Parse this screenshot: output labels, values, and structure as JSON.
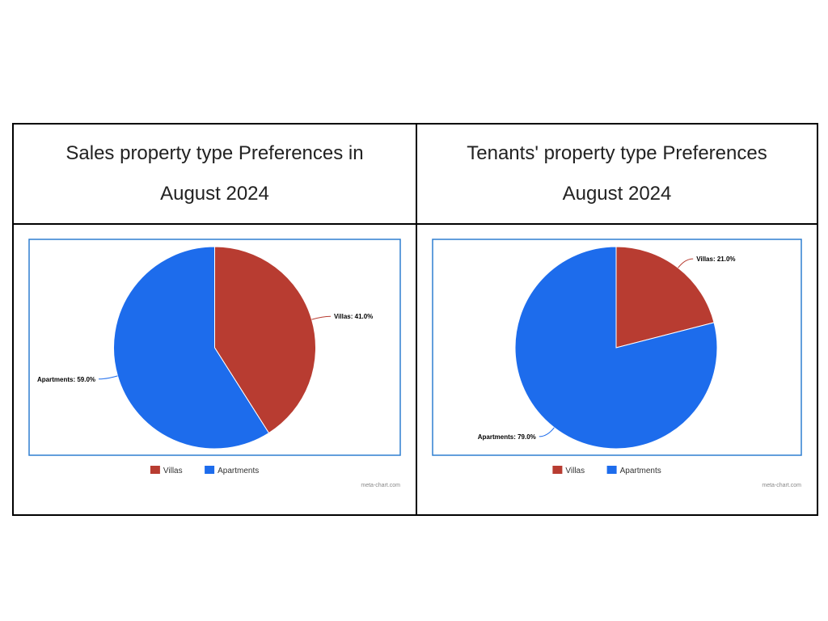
{
  "chart_data": [
    {
      "type": "pie",
      "title_line1": "Sales property type Preferences in",
      "title_line2": "August 2024",
      "slices": [
        {
          "label": "Villas",
          "value": 41.0,
          "display": "Villas: 41.0%",
          "color": "#b83c31"
        },
        {
          "label": "Apartments",
          "value": 59.0,
          "display": "Apartments: 59.0%",
          "color": "#1d6cec"
        }
      ],
      "legend": [
        "Villas",
        "Apartments"
      ],
      "legend_placement": "bottom",
      "credit": "meta-chart.com",
      "frame_color": "#2f7fd1"
    },
    {
      "type": "pie",
      "title_line1": "Tenants' property type Preferences",
      "title_line2": "August 2024",
      "slices": [
        {
          "label": "Villas",
          "value": 21.0,
          "display": "Villas: 21.0%",
          "color": "#b83c31"
        },
        {
          "label": "Apartments",
          "value": 79.0,
          "display": "Apartments: 79.0%",
          "color": "#1d6cec"
        }
      ],
      "legend": [
        "Villas",
        "Apartments"
      ],
      "legend_placement": "bottom",
      "credit": "meta-chart.com",
      "frame_color": "#2f7fd1"
    }
  ]
}
